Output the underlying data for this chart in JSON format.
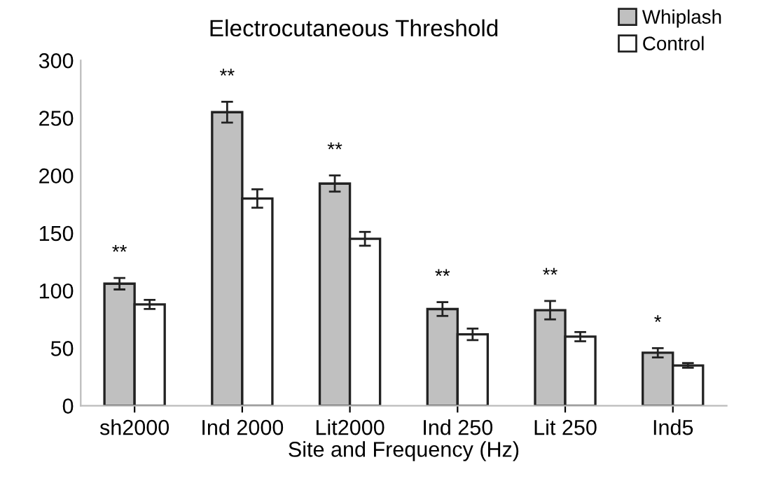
{
  "chart_data": {
    "type": "bar",
    "title": "Electrocutaneous Threshold",
    "xlabel": "Site and Frequency (Hz)",
    "categories": [
      "sh2000",
      "Ind 2000",
      "Lit2000",
      "Ind 250",
      "Lit 250",
      "Ind5"
    ],
    "series": [
      {
        "name": "Whiplash",
        "color": "#c0c0c0",
        "values": [
          106,
          255,
          193,
          84,
          83,
          46
        ],
        "errors": [
          5,
          9,
          7,
          6,
          8,
          4
        ]
      },
      {
        "name": "Control",
        "color": "#ffffff",
        "values": [
          88,
          180,
          145,
          62,
          60,
          35
        ],
        "errors": [
          4,
          8,
          6,
          5,
          4,
          2
        ]
      }
    ],
    "ylim": [
      0,
      300
    ],
    "yticks": [
      0,
      50,
      100,
      150,
      200,
      250,
      300
    ],
    "grid": false,
    "legend": "top right",
    "annotations": [
      "**",
      "**",
      "**",
      "**",
      "**",
      "*"
    ]
  }
}
